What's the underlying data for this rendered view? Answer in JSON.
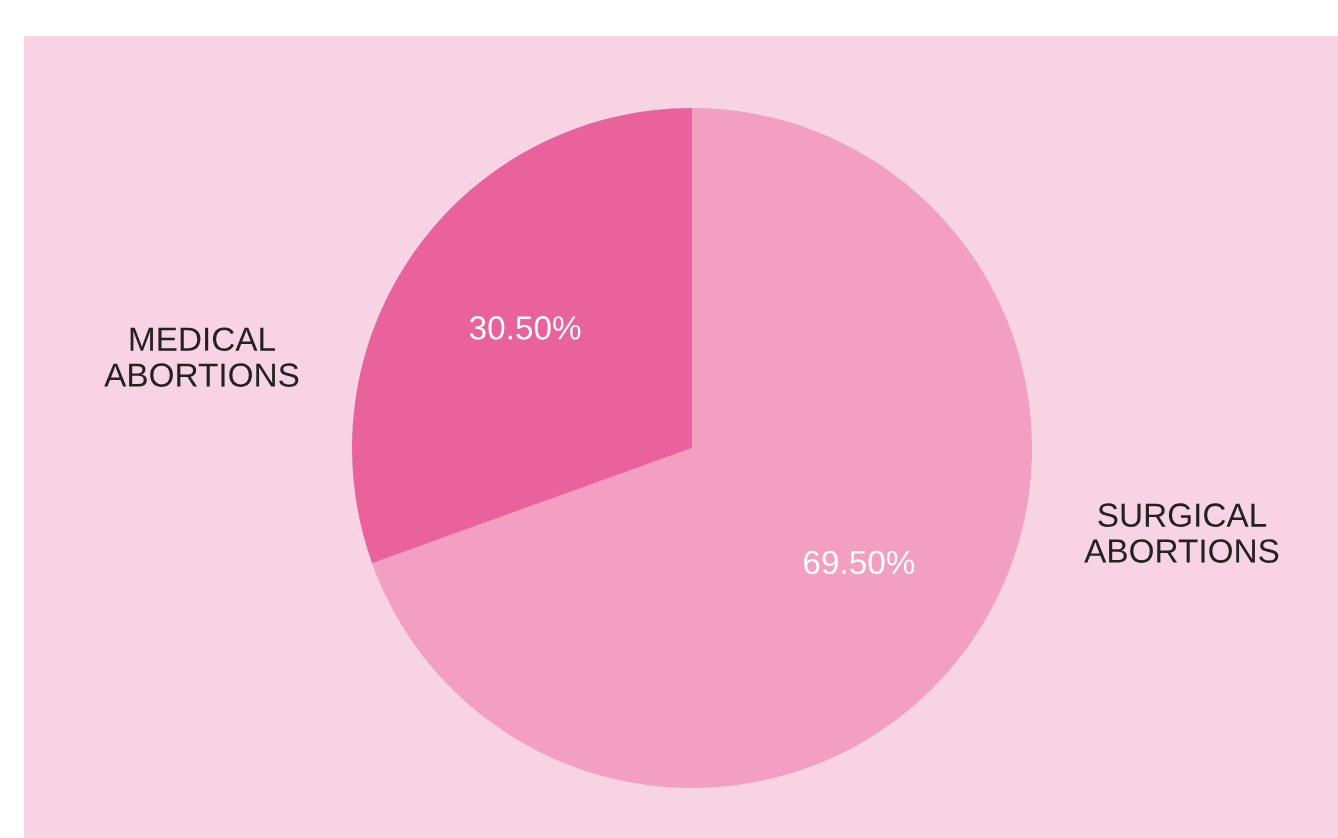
{
  "chart_data": {
    "type": "pie",
    "categories": [
      "SURGICAL\nABORTIONS",
      "MEDICAL\nABORTIONS"
    ],
    "values": [
      69.5,
      30.5
    ],
    "colors": [
      "#f29fc1",
      "#e9629b"
    ],
    "value_labels": [
      "69.50%",
      "30.50%"
    ],
    "legend": false
  }
}
